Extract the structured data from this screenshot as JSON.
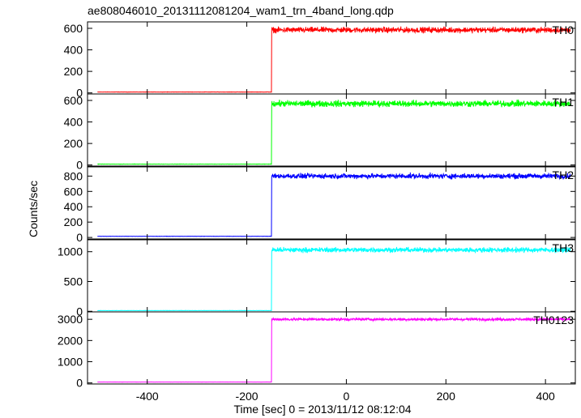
{
  "title": "ae808046010_20131112081204_wam1_trn_4band_long.qdp",
  "ylabel": "Counts/sec",
  "xlabel": "Time [sec] 0 = 2013/11/12 08:12:04",
  "chart_data": {
    "type": "line",
    "title": "ae808046010_20131112081204_wam1_trn_4band_long.qdp",
    "xlabel": "Time [sec] 0 = 2013/11/12 08:12:04",
    "ylabel": "Counts/sec",
    "xlim": [
      -520,
      460
    ],
    "x_ticks": [
      -400,
      -200,
      0,
      200,
      400
    ],
    "step_time": -150,
    "data_range": [
      -500,
      450
    ],
    "grid": false,
    "panels": [
      {
        "name": "TH0",
        "color": "#ff0000",
        "ylim": [
          -10,
          660
        ],
        "yticks": [
          0,
          200,
          400,
          600
        ],
        "pre_level": 8,
        "post_level": 585,
        "noise": 22
      },
      {
        "name": "TH1",
        "color": "#00ff00",
        "ylim": [
          -10,
          660
        ],
        "yticks": [
          0,
          200,
          400,
          600
        ],
        "pre_level": 8,
        "post_level": 570,
        "noise": 25
      },
      {
        "name": "TH2",
        "color": "#0000ff",
        "ylim": [
          -20,
          920
        ],
        "yticks": [
          0,
          200,
          400,
          600,
          800
        ],
        "pre_level": 15,
        "post_level": 800,
        "noise": 28
      },
      {
        "name": "TH3",
        "color": "#00ffff",
        "ylim": [
          -10,
          1200
        ],
        "yticks": [
          0,
          500,
          1000
        ],
        "pre_level": 12,
        "post_level": 1030,
        "noise": 35
      },
      {
        "name": "TH0123",
        "color": "#ff00ff",
        "ylim": [
          -50,
          3350
        ],
        "yticks": [
          0,
          1000,
          2000,
          3000
        ],
        "pre_level": 40,
        "post_level": 3000,
        "noise": 55
      }
    ]
  }
}
